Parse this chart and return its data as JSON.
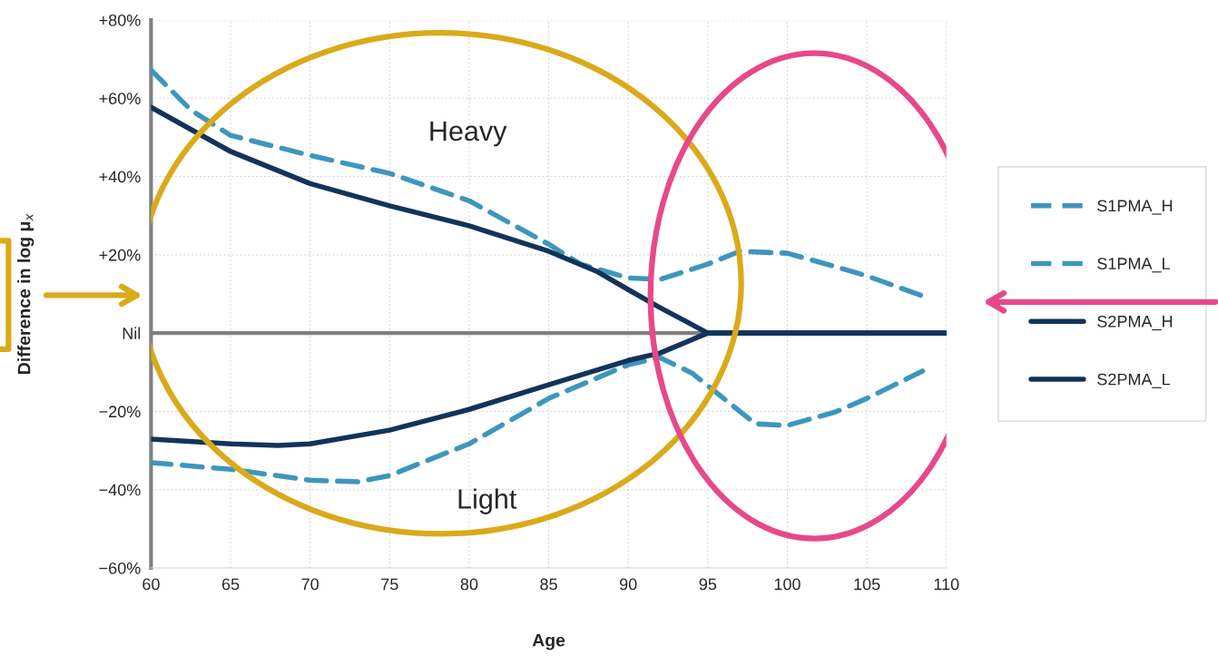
{
  "chart_data": {
    "type": "line",
    "xlabel": "Age",
    "ylabel": "Difference in log μ$_{x}$",
    "xlim": [
      60,
      110
    ],
    "xticks": [
      60,
      65,
      70,
      75,
      80,
      85,
      90,
      95,
      100,
      105,
      110
    ],
    "ylim": [
      -60,
      80
    ],
    "yticks": [
      {
        "value": 80,
        "label": "+80%"
      },
      {
        "value": 60,
        "label": "+60%"
      },
      {
        "value": 40,
        "label": "+40%"
      },
      {
        "value": 20,
        "label": "+20%"
      },
      {
        "value": 0,
        "label": "Nil"
      },
      {
        "value": -20,
        "label": "−20%"
      },
      {
        "value": -40,
        "label": "−40%"
      },
      {
        "value": -60,
        "label": "−60%"
      }
    ],
    "grid": true,
    "legend": "right",
    "ref_lines": [
      {
        "axis": "y",
        "value": 0,
        "color": "#808080"
      }
    ],
    "annotations": [
      "Heavy",
      "Light"
    ],
    "series": [
      {
        "name": "S1PMA_H",
        "color": "#3e96bc",
        "line_style": "dashed",
        "x": [
          60,
          62.5,
          65,
          70,
          75,
          80,
          85,
          87,
          90,
          92,
          95,
          97,
          100,
          103,
          105,
          108.5
        ],
        "values": [
          67.2,
          57,
          50.5,
          45.4,
          40.8,
          33.8,
          22.7,
          17.6,
          14.1,
          13.7,
          17.6,
          20.9,
          20.4,
          17,
          14.6,
          9.5
        ]
      },
      {
        "name": "S1PMA_L",
        "color": "#3e96bc",
        "line_style": "dashed",
        "x": [
          60,
          65,
          70,
          73,
          75,
          80,
          85,
          90,
          92,
          94,
          96,
          98,
          100,
          103,
          105,
          108.5
        ],
        "values": [
          -33.1,
          -34.8,
          -37.6,
          -38,
          -36.4,
          -28.3,
          -16.7,
          -8.1,
          -6.3,
          -10.2,
          -16.7,
          -23.2,
          -23.6,
          -20.2,
          -16.7,
          -9.7
        ]
      },
      {
        "name": "S2PMA_H",
        "color": "#12345a",
        "line_style": "solid",
        "x": [
          60,
          65,
          70,
          75,
          80,
          85,
          88,
          90,
          92,
          95,
          100,
          110
        ],
        "values": [
          57.7,
          46.4,
          38.2,
          32.5,
          27.4,
          20.9,
          15.8,
          11.1,
          6.5,
          0,
          0,
          0
        ]
      },
      {
        "name": "S2PMA_L",
        "color": "#12345a",
        "line_style": "solid",
        "x": [
          60,
          65,
          68,
          70,
          75,
          80,
          85,
          90,
          92,
          95,
          100,
          110
        ],
        "values": [
          -27.1,
          -28.3,
          -28.7,
          -28.3,
          -24.8,
          -19.5,
          -13.2,
          -7,
          -5.1,
          0,
          0,
          0
        ]
      }
    ]
  }
}
